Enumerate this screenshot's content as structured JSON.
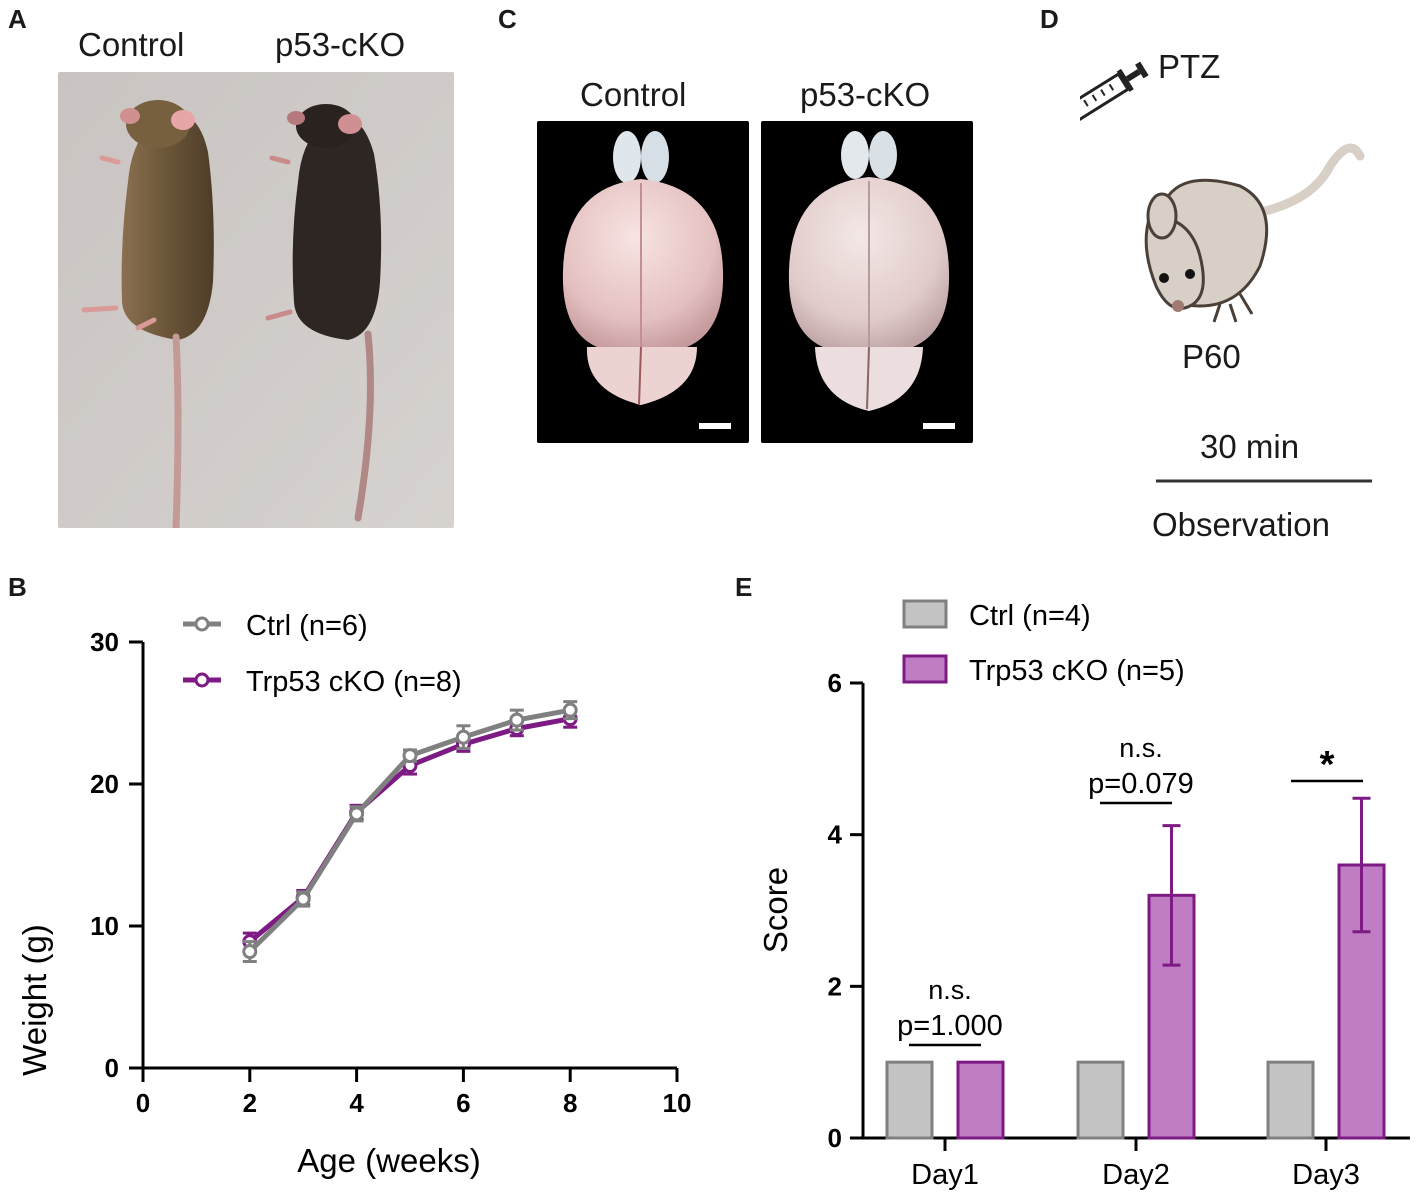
{
  "panel_labels": {
    "a": "A",
    "b": "B",
    "c": "C",
    "d": "D",
    "e": "E"
  },
  "panel_a": {
    "left_label": "Control",
    "right_label": "p53-cKO"
  },
  "panel_c": {
    "left_label": "Control",
    "right_label": "p53-cKO"
  },
  "panel_d": {
    "drug": "PTZ",
    "age": "P60",
    "duration": "30 min",
    "phase": "Observation"
  },
  "colors": {
    "ctrl": "#808080",
    "ctrl_fill": "#c3c3c3",
    "cko": "#7d1a84",
    "cko_fill": "#c17dc4",
    "axis": "#000000"
  },
  "chart_data": [
    {
      "type": "line",
      "panel": "B",
      "xlabel": "Age (weeks)",
      "ylabel": "Weight (g)",
      "xlim": [
        0,
        10
      ],
      "ylim": [
        0,
        30
      ],
      "xticks": [
        0,
        2,
        4,
        6,
        8,
        10
      ],
      "yticks": [
        0,
        10,
        20,
        30
      ],
      "legend_position": "top-left",
      "series": [
        {
          "name": "Ctrl (n=6)",
          "x": [
            2,
            3,
            4,
            5,
            6,
            7,
            8
          ],
          "y": [
            8.2,
            11.9,
            17.9,
            22.0,
            23.3,
            24.5,
            25.2
          ],
          "err": [
            0.7,
            0.5,
            0.5,
            0.4,
            0.8,
            0.7,
            0.6
          ]
        },
        {
          "name": "Trp53 cKO (n=8)",
          "x": [
            2,
            3,
            4,
            5,
            6,
            7,
            8
          ],
          "y": [
            8.9,
            12.0,
            18.0,
            21.3,
            22.8,
            23.9,
            24.6
          ],
          "err": [
            0.6,
            0.5,
            0.5,
            0.6,
            0.5,
            0.5,
            0.6
          ]
        }
      ]
    },
    {
      "type": "bar",
      "panel": "E",
      "ylabel": "Score",
      "ylim": [
        0,
        6
      ],
      "yticks": [
        0,
        2,
        4,
        6
      ],
      "categories": [
        "Day1",
        "Day2",
        "Day3"
      ],
      "legend_position": "top-left",
      "series": [
        {
          "name": "Ctrl (n=4)",
          "values": [
            1,
            1,
            1
          ],
          "err": [
            0,
            0,
            0
          ]
        },
        {
          "name": "Trp53 cKO (n=5)",
          "values": [
            1,
            3.2,
            3.6
          ],
          "err": [
            0,
            0.92,
            0.88
          ]
        }
      ],
      "annotations": [
        {
          "category": "Day1",
          "sig": "n.s.",
          "p": "p=1.000"
        },
        {
          "category": "Day2",
          "sig": "n.s.",
          "p": "p=0.079"
        },
        {
          "category": "Day3",
          "sig": "*",
          "p": ""
        }
      ]
    }
  ]
}
